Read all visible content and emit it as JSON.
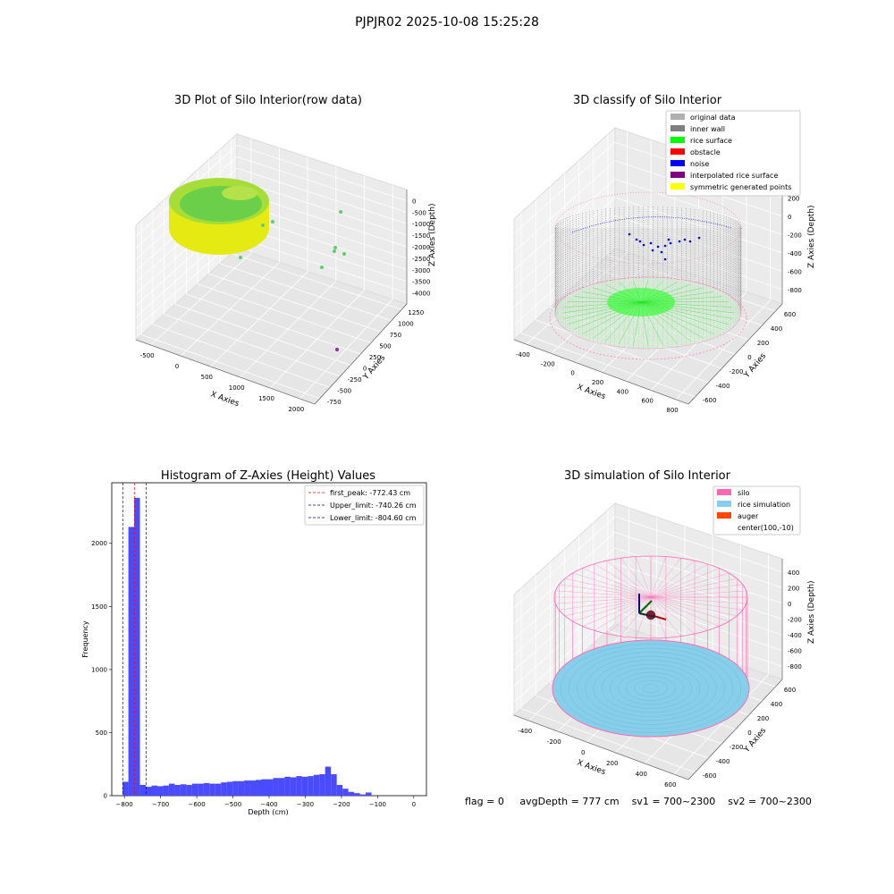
{
  "page_title": "PJPJR02 2025-10-08 15:25:28",
  "colors": {
    "rice_green": "#6ccf4a",
    "rice_yellow": "#f1f10a",
    "silo_pink": "#ff69b4",
    "rice_sim": "#87ceeb",
    "auger": "#ff4500",
    "noise_blue": "#0000ff",
    "hist_bar": "#4a4aff"
  },
  "footer": {
    "flag": "flag = 0",
    "avg_depth": "avgDepth = 777 cm",
    "sv1": "sv1 = 700~2300",
    "sv2": "sv2 = 700~2300"
  },
  "chart_data": [
    {
      "type": "scatter3d",
      "title": "3D Plot of Silo Interior(row data)",
      "xlabel": "X Axies",
      "ylabel": "Y Axies",
      "zlabel": "Z Axies (Depth)",
      "x_ticks": [
        "-500",
        "0",
        "500",
        "1000",
        "1500",
        "2000"
      ],
      "y_ticks": [
        "-750",
        "-500",
        "-250",
        "0",
        "250",
        "500",
        "750",
        "1000",
        "1250"
      ],
      "z_ticks": [
        "0",
        "-500",
        "-1000",
        "-1500",
        "-2000",
        "-2500",
        "-3000",
        "-3500",
        "-4000"
      ],
      "xlim": [
        -600,
        2200
      ],
      "ylim": [
        -800,
        1300
      ],
      "zlim": [
        -4000,
        0
      ]
    },
    {
      "type": "scatter3d",
      "title": "3D classify of Silo Interior",
      "xlabel": "X Axies",
      "ylabel": "Y Axies",
      "zlabel": "Z Axies (Depth)",
      "x_ticks": [
        "-400",
        "-200",
        "0",
        "200",
        "400",
        "600",
        "800"
      ],
      "y_ticks": [
        "-600",
        "-400",
        "-200",
        "0",
        "200",
        "400",
        "600"
      ],
      "z_ticks": [
        "200",
        "0",
        "-200",
        "-400",
        "-600",
        "-800"
      ],
      "z_top_partial": "0",
      "legend": [
        {
          "label": "original data",
          "color": "#b0b0b0"
        },
        {
          "label": "inner wall",
          "color": "#808080"
        },
        {
          "label": "rice surface",
          "color": "#00ff00"
        },
        {
          "label": "obstacle",
          "color": "#ff0000"
        },
        {
          "label": "noise",
          "color": "#0000ff"
        },
        {
          "label": "interpolated rice surface",
          "color": "#800080"
        },
        {
          "label": "symmetric generated points",
          "color": "#ffff00"
        }
      ],
      "legend_position": "upper right"
    },
    {
      "type": "histogram",
      "title": "Histogram of Z-Axies (Height) Values",
      "xlabel": "Depth (cm)",
      "ylabel": "Frequency",
      "xlim": [
        -835,
        35
      ],
      "ylim": [
        0,
        2480
      ],
      "x_ticks": [
        -800,
        -700,
        -600,
        -500,
        -400,
        -300,
        -200,
        -100,
        0
      ],
      "y_ticks": [
        0,
        500,
        1000,
        1500,
        2000
      ],
      "bin_start": -805,
      "bin_width": 16,
      "counts": [
        110,
        2130,
        2360,
        85,
        70,
        80,
        75,
        80,
        95,
        85,
        90,
        85,
        95,
        95,
        100,
        95,
        95,
        105,
        110,
        115,
        115,
        120,
        120,
        125,
        130,
        130,
        140,
        140,
        150,
        145,
        155,
        150,
        155,
        165,
        170,
        230,
        170,
        85,
        55,
        30,
        20,
        10,
        25
      ],
      "lines": [
        {
          "label": "first_peak: -772.43 cm",
          "x": -772.43,
          "color": "#ff0000"
        },
        {
          "label": "Upper_limit: -740.26 cm",
          "x": -740.26,
          "color": "#0000aa"
        },
        {
          "label": "Lower_limit: -804.60 cm",
          "x": -804.6,
          "color": "#0000aa"
        }
      ],
      "legend_position": "upper right"
    },
    {
      "type": "surface3d",
      "title": "3D simulation of Silo Interior",
      "xlabel": "X Axies",
      "ylabel": "Y Axies",
      "zlabel": "Z Axies (Depth)",
      "x_ticks": [
        "-400",
        "-200",
        "0",
        "200",
        "400",
        "600"
      ],
      "y_ticks": [
        "-600",
        "-400",
        "-200",
        "0",
        "200",
        "400",
        "600"
      ],
      "z_ticks": [
        "400",
        "200",
        "0",
        "-200",
        "-400",
        "-600",
        "-800"
      ],
      "legend": [
        {
          "label": "silo",
          "color": "#ff69b4"
        },
        {
          "label": "rice simulation",
          "color": "#87ceeb"
        },
        {
          "label": "auger",
          "color": "#ff4500"
        },
        {
          "label": "center(100,-10)",
          "color": ""
        }
      ],
      "legend_position": "upper right"
    }
  ]
}
